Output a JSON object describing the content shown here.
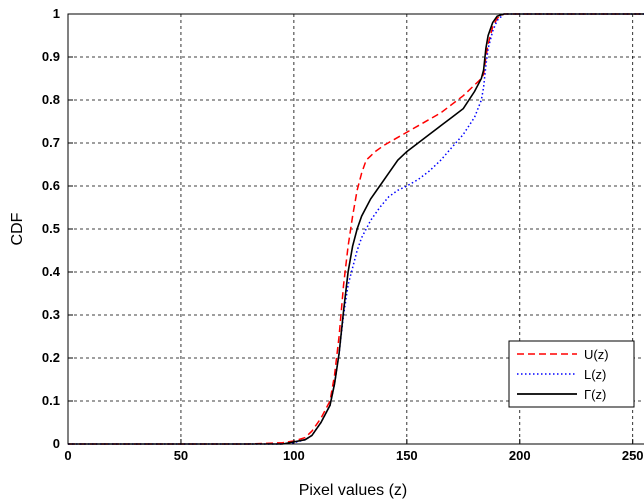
{
  "chart_data": {
    "type": "line",
    "title": "",
    "xlabel": "Pixel values (z)",
    "ylabel": "CDF",
    "xlim": [
      0,
      255
    ],
    "ylim": [
      0,
      1
    ],
    "x_ticks": [
      "0",
      "50",
      "100",
      "150",
      "200",
      "250"
    ],
    "y_ticks": [
      "0",
      "0.1",
      "0.2",
      "0.3",
      "0.4",
      "0.5",
      "0.6",
      "0.7",
      "0.8",
      "0.9",
      "1"
    ],
    "grid": true,
    "legend_position": "bottom-right",
    "series": [
      {
        "name": "U(z)",
        "color": "#ff0000",
        "style": "dashed",
        "x": [
          0,
          80,
          95,
          100,
          105,
          108,
          112,
          116,
          118,
          120,
          122,
          124,
          126,
          128,
          130,
          132,
          134,
          136,
          140,
          145,
          150,
          155,
          160,
          165,
          170,
          175,
          180,
          183,
          184,
          185,
          186,
          188,
          190,
          193,
          196,
          255
        ],
        "y": [
          0,
          0,
          0.003,
          0.007,
          0.015,
          0.03,
          0.06,
          0.1,
          0.16,
          0.25,
          0.37,
          0.46,
          0.53,
          0.59,
          0.63,
          0.66,
          0.67,
          0.68,
          0.695,
          0.71,
          0.725,
          0.74,
          0.755,
          0.77,
          0.79,
          0.81,
          0.835,
          0.85,
          0.86,
          0.9,
          0.93,
          0.97,
          0.99,
          1.0,
          1.0,
          1.0
        ]
      },
      {
        "name": "L(z)",
        "color": "#0000ff",
        "style": "dotted",
        "x": [
          0,
          95,
          100,
          105,
          108,
          112,
          116,
          118,
          120,
          122,
          124,
          126,
          128,
          130,
          134,
          138,
          142,
          146,
          150,
          155,
          160,
          165,
          170,
          175,
          180,
          183,
          184,
          185,
          186,
          188,
          190,
          193,
          196,
          255
        ],
        "y": [
          0,
          0,
          0.003,
          0.01,
          0.02,
          0.05,
          0.09,
          0.14,
          0.21,
          0.3,
          0.37,
          0.41,
          0.45,
          0.48,
          0.52,
          0.55,
          0.575,
          0.59,
          0.6,
          0.615,
          0.635,
          0.66,
          0.69,
          0.72,
          0.76,
          0.8,
          0.83,
          0.88,
          0.92,
          0.96,
          0.985,
          1.0,
          1.0,
          1.0
        ]
      },
      {
        "name": "Γ(z)",
        "color": "#000000",
        "style": "solid",
        "x": [
          0,
          95,
          100,
          105,
          108,
          112,
          116,
          118,
          120,
          122,
          124,
          126,
          128,
          130,
          134,
          138,
          142,
          146,
          150,
          155,
          160,
          165,
          170,
          175,
          180,
          183,
          184,
          185,
          186,
          188,
          190,
          193,
          196,
          255
        ],
        "y": [
          0,
          0,
          0.005,
          0.01,
          0.02,
          0.05,
          0.09,
          0.14,
          0.21,
          0.31,
          0.4,
          0.46,
          0.5,
          0.53,
          0.57,
          0.6,
          0.63,
          0.66,
          0.68,
          0.7,
          0.72,
          0.74,
          0.76,
          0.78,
          0.82,
          0.85,
          0.87,
          0.92,
          0.95,
          0.98,
          0.995,
          1.0,
          1.0,
          1.0
        ]
      }
    ]
  }
}
